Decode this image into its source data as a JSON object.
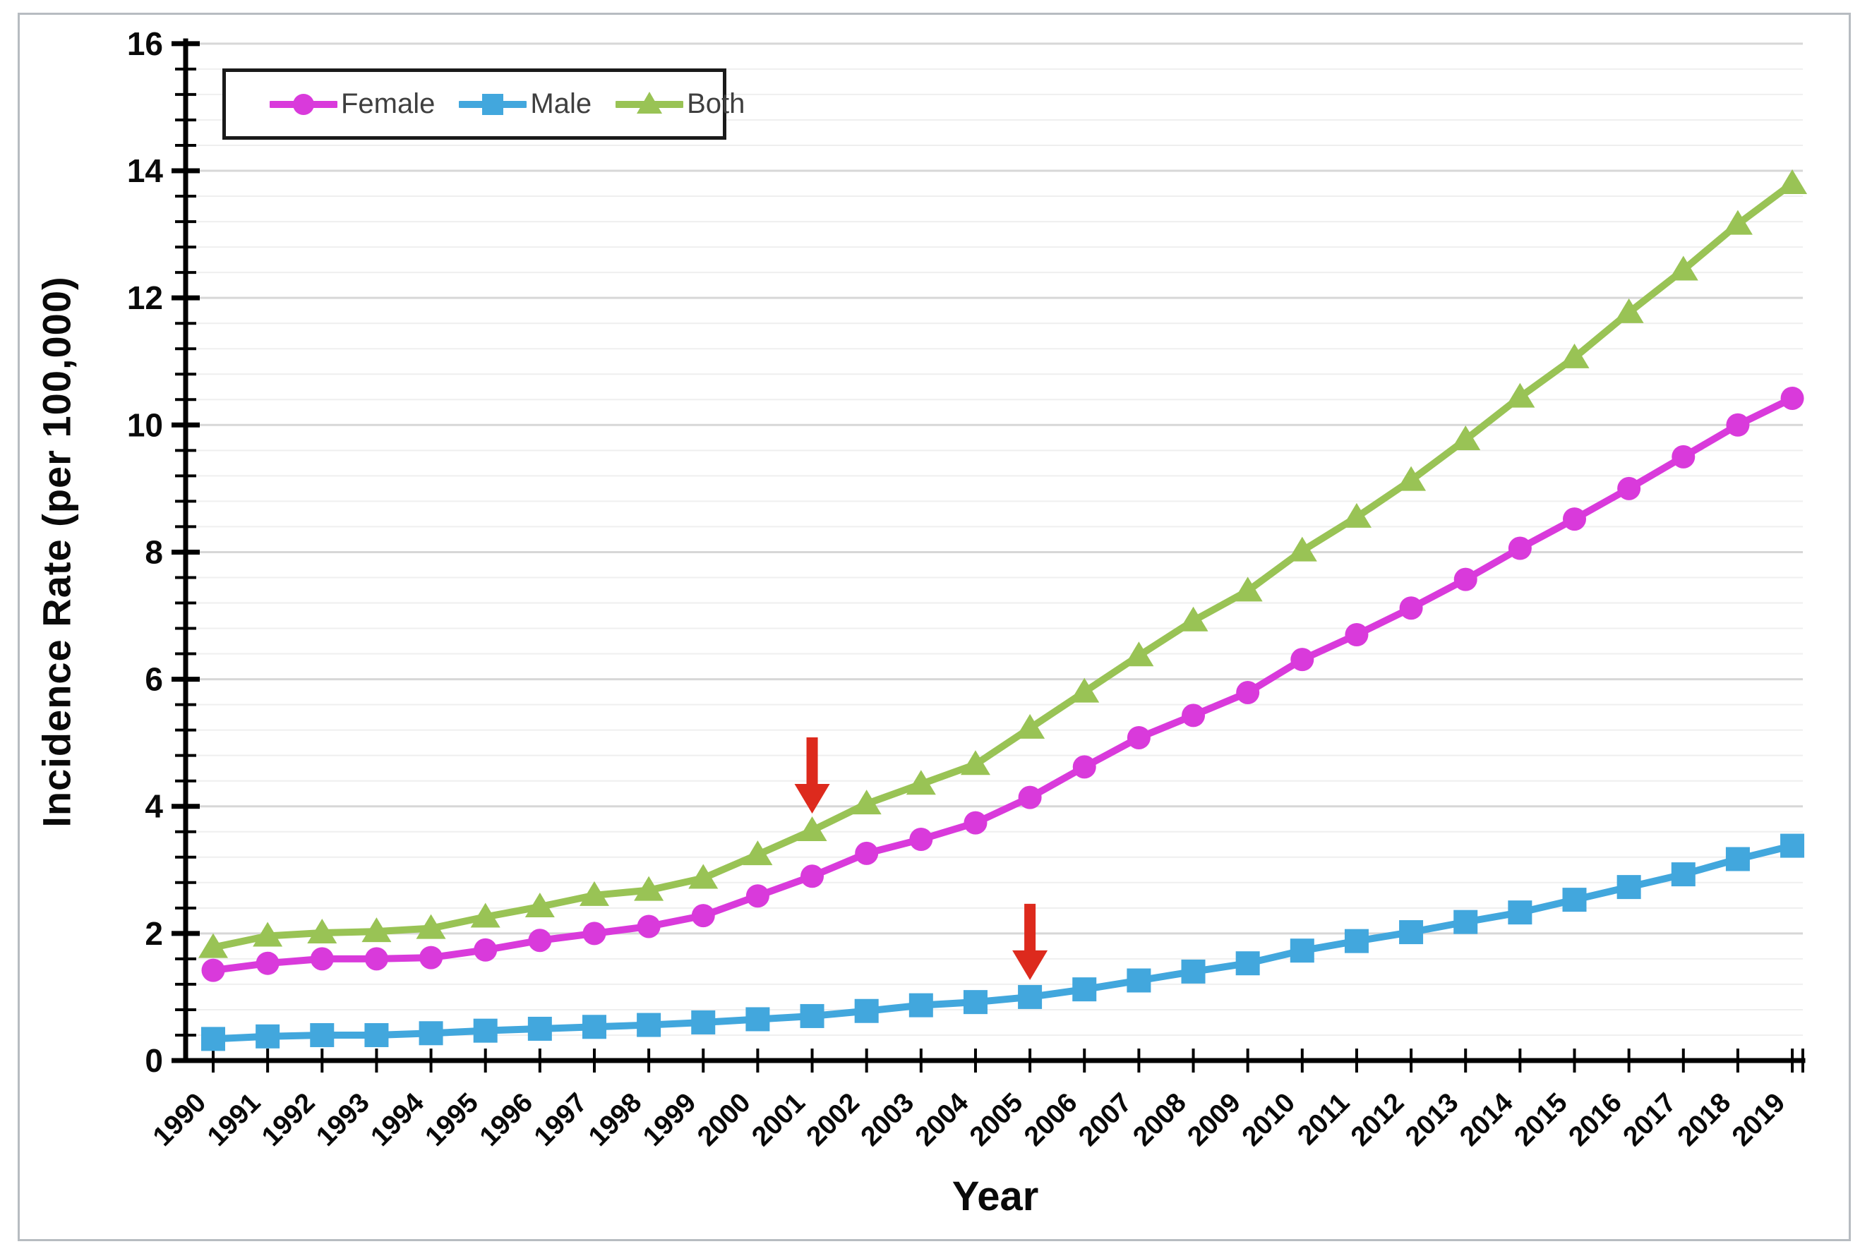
{
  "figure": {
    "background": "#ffffff",
    "frame_border_color": "#b7bcc1"
  },
  "chart_data": {
    "type": "line",
    "title": "",
    "xlabel": "Year",
    "ylabel": "Incidence Rate (per 100,000)",
    "x": [
      1990,
      1991,
      1992,
      1993,
      1994,
      1995,
      1996,
      1997,
      1998,
      1999,
      2000,
      2001,
      2002,
      2003,
      2004,
      2005,
      2006,
      2007,
      2008,
      2009,
      2010,
      2011,
      2012,
      2013,
      2014,
      2015,
      2016,
      2017,
      2018,
      2019
    ],
    "series": [
      {
        "name": "Female",
        "color": "#d93adb",
        "marker": "circle",
        "values": [
          1.42,
          1.53,
          1.6,
          1.6,
          1.62,
          1.74,
          1.89,
          2.0,
          2.11,
          2.28,
          2.59,
          2.9,
          3.26,
          3.48,
          3.74,
          4.14,
          4.62,
          5.08,
          5.43,
          5.79,
          6.31,
          6.7,
          7.12,
          7.57,
          8.06,
          8.52,
          9.0,
          9.5,
          10.0,
          10.42
        ]
      },
      {
        "name": "Male",
        "color": "#42a7dd",
        "marker": "square",
        "values": [
          0.34,
          0.38,
          0.4,
          0.4,
          0.43,
          0.47,
          0.5,
          0.53,
          0.56,
          0.6,
          0.65,
          0.7,
          0.78,
          0.87,
          0.92,
          1.0,
          1.12,
          1.26,
          1.4,
          1.53,
          1.73,
          1.88,
          2.02,
          2.18,
          2.33,
          2.53,
          2.73,
          2.93,
          3.17,
          3.38
        ]
      },
      {
        "name": "Both",
        "color": "#99c355",
        "marker": "triangle",
        "values": [
          1.78,
          1.96,
          2.01,
          2.03,
          2.08,
          2.26,
          2.42,
          2.6,
          2.68,
          2.87,
          3.24,
          3.62,
          4.04,
          4.35,
          4.66,
          5.23,
          5.8,
          6.37,
          6.92,
          7.39,
          8.02,
          8.55,
          9.13,
          9.77,
          10.44,
          11.06,
          11.77,
          12.44,
          13.16,
          13.8
        ]
      }
    ],
    "ylim": [
      0,
      16
    ],
    "y_major_step": 2,
    "y_minor_step": 0.4,
    "y_tick_labels": [
      "0",
      "2",
      "4",
      "6",
      "8",
      "10",
      "12",
      "14",
      "16"
    ],
    "grid": "horizontal-only",
    "legend_position": "top-left",
    "annotations": [
      {
        "type": "down-arrow",
        "color": "#dd2a1d",
        "target_series": "Both",
        "target_x": 2001
      },
      {
        "type": "down-arrow",
        "color": "#dd2a1d",
        "target_series": "Male",
        "target_x": 2005
      }
    ]
  },
  "legend": {
    "entries": [
      {
        "label": "Female"
      },
      {
        "label": "Male"
      },
      {
        "label": "Both"
      }
    ]
  }
}
